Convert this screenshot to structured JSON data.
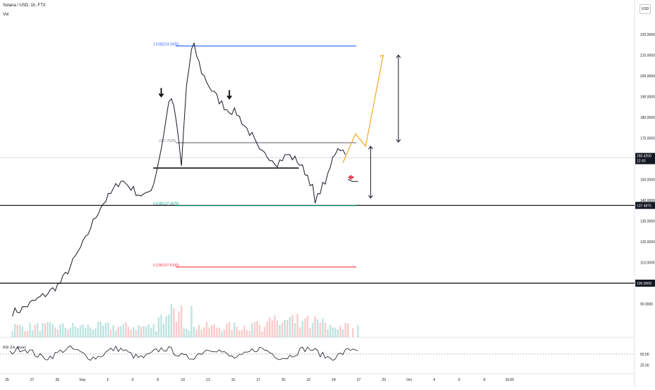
{
  "header": {
    "symbol": "Solana / USD, 1h, FTX",
    "volume_label": "Vol"
  },
  "currency_label": "USD",
  "chart_data": {
    "type": "line",
    "title": "Solana / USD, 1h, FTX",
    "price_axis": {
      "range": [
        80,
        225
      ],
      "ticks": [
        "220.0000",
        "210.0000",
        "200.0000",
        "190.0000",
        "180.0000",
        "170.0000",
        "160.0000",
        "150.0000",
        "140.0000",
        "130.0000",
        "120.0000",
        "110.0000",
        "100.0000",
        "90.0000"
      ],
      "tick_values": [
        220,
        210,
        200,
        190,
        180,
        170,
        160,
        150,
        140,
        130,
        120,
        110,
        100,
        90
      ]
    },
    "time_axis": {
      "labels": [
        "25",
        "27",
        "30",
        "Sep",
        "3",
        "6",
        "8",
        "10",
        "13",
        "15",
        "17",
        "20",
        "22",
        "24",
        "27",
        "29",
        "Oct",
        "4",
        "6",
        "8",
        "16:00"
      ]
    },
    "price_series": {
      "name": "SOLUSD",
      "anchors": [
        [
          1,
          86
        ],
        [
          4,
          87
        ],
        [
          8,
          90
        ],
        [
          12,
          93
        ],
        [
          16,
          96
        ],
        [
          20,
          100
        ],
        [
          24,
          108
        ],
        [
          28,
          117
        ],
        [
          30,
          121
        ],
        [
          32,
          127
        ],
        [
          36,
          137
        ],
        [
          40,
          143
        ],
        [
          44,
          150
        ],
        [
          48,
          146
        ],
        [
          51,
          143
        ],
        [
          54,
          142
        ],
        [
          57,
          148
        ],
        [
          60,
          165
        ],
        [
          63,
          187
        ],
        [
          64,
          190
        ],
        [
          66,
          178
        ],
        [
          68,
          156
        ],
        [
          70,
          195
        ],
        [
          72,
          212
        ],
        [
          73,
          214
        ],
        [
          76,
          202
        ],
        [
          80,
          193
        ],
        [
          83,
          188
        ],
        [
          86,
          184
        ],
        [
          90,
          182
        ],
        [
          93,
          176
        ],
        [
          96,
          171
        ],
        [
          99,
          163
        ],
        [
          103,
          161
        ],
        [
          106,
          158
        ],
        [
          110,
          162
        ],
        [
          114,
          159
        ],
        [
          118,
          152
        ],
        [
          120,
          146
        ],
        [
          121,
          138
        ],
        [
          123,
          145
        ],
        [
          126,
          151
        ],
        [
          128,
          160
        ],
        [
          130,
          166
        ],
        [
          132,
          164
        ],
        [
          133,
          162
        ]
      ],
      "gap_from": 133,
      "gap_resume": [
        [
          134,
          150
        ],
        [
          136,
          149
        ],
        [
          138,
          149
        ]
      ]
    },
    "fib_levels": [
      {
        "label": "1.618(214.3425)",
        "value": 214.3425,
        "color": "#2962ff"
      },
      {
        "label": "(167.7025)",
        "value": 167.7025,
        "color": "#787b86"
      },
      {
        "label": "0.618(137.3575)",
        "value": 137.3575,
        "color": "#089981"
      },
      {
        "label": "0.236(107.8100)",
        "value": 107.81,
        "color": "#f23645"
      }
    ],
    "horizontal_lines": [
      {
        "label": "137.4875",
        "value": 137.4875,
        "color": "#000000"
      },
      {
        "label": "100.0000",
        "value": 100.0,
        "color": "#000000"
      }
    ],
    "support_line_value": 155.5,
    "current_price": {
      "label": "160.4200",
      "countdown": "12:43",
      "value": 160.42
    },
    "projection": [
      [
        132,
        158
      ],
      [
        137,
        172
      ],
      [
        141,
        166
      ],
      [
        148,
        210
      ]
    ],
    "annotations": {
      "down_arrows": [
        [
          60,
          190
        ],
        [
          87,
          189
        ]
      ],
      "red_arrow": [
        134,
        151
      ]
    },
    "measure_arrows": [
      {
        "x": 154,
        "from": 210,
        "to": 168
      },
      {
        "x": 143,
        "from": 166,
        "to": 141
      }
    ],
    "rsi": {
      "label": "RSI (14, close)",
      "ticks": [
        "50.00",
        "25.00"
      ],
      "tick_values": [
        50,
        25
      ],
      "range": [
        12,
        78
      ]
    },
    "colors": {
      "up": "#26a69a",
      "down": "#ef5350",
      "price": "#131722",
      "projection": "#f5a623"
    }
  }
}
